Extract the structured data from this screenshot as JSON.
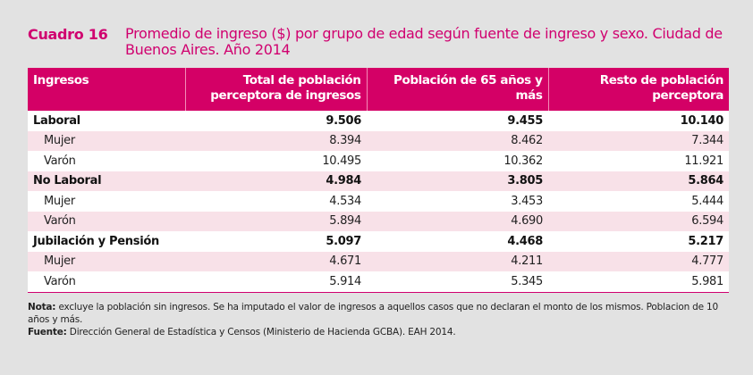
{
  "title": {
    "label": "Cuadro 16",
    "text": "Promedio de ingreso ($) por grupo de edad según fuente de ingreso y sexo. Ciudad de Buenos Aires. Año 2014"
  },
  "table": {
    "headers": [
      "Ingresos",
      "Total de población perceptora de ingresos",
      "Población de 65 años y más",
      "Resto de población perceptora"
    ],
    "rows": [
      {
        "label": "Laboral",
        "type": "group",
        "values": [
          "9.506",
          "9.455",
          "10.140"
        ]
      },
      {
        "label": "Mujer",
        "type": "sub",
        "values": [
          "8.394",
          "8.462",
          "7.344"
        ]
      },
      {
        "label": "Varón",
        "type": "sub",
        "values": [
          "10.495",
          "10.362",
          "11.921"
        ]
      },
      {
        "label": "No Laboral",
        "type": "group",
        "values": [
          "4.984",
          "3.805",
          "5.864"
        ]
      },
      {
        "label": "Mujer",
        "type": "sub",
        "values": [
          "4.534",
          "3.453",
          "5.444"
        ]
      },
      {
        "label": "Varón",
        "type": "sub",
        "values": [
          "5.894",
          "4.690",
          "6.594"
        ]
      },
      {
        "label": "Jubilación y Pensión",
        "type": "group",
        "values": [
          "5.097",
          "4.468",
          "5.217"
        ]
      },
      {
        "label": "Mujer",
        "type": "sub",
        "values": [
          "4.671",
          "4.211",
          "4.777"
        ]
      },
      {
        "label": "Varón",
        "type": "sub",
        "values": [
          "5.914",
          "5.345",
          "5.981"
        ]
      }
    ]
  },
  "notes": {
    "nota_label": "Nota:",
    "nota_text": " excluye la población sin ingresos. Se ha imputado el valor de ingresos a aquellos casos que no declaran el monto de los mismos. Poblacion de 10 años y más.",
    "fuente_label": "Fuente:",
    "fuente_text": " Dirección General de Estadística y Censos (Ministerio de Hacienda GCBA). EAH 2014."
  },
  "colors": {
    "accent": "#d0006f",
    "header_bg": "#d40066",
    "row_alt": "#f8e1e8",
    "page_bg": "#e2e2e2"
  }
}
